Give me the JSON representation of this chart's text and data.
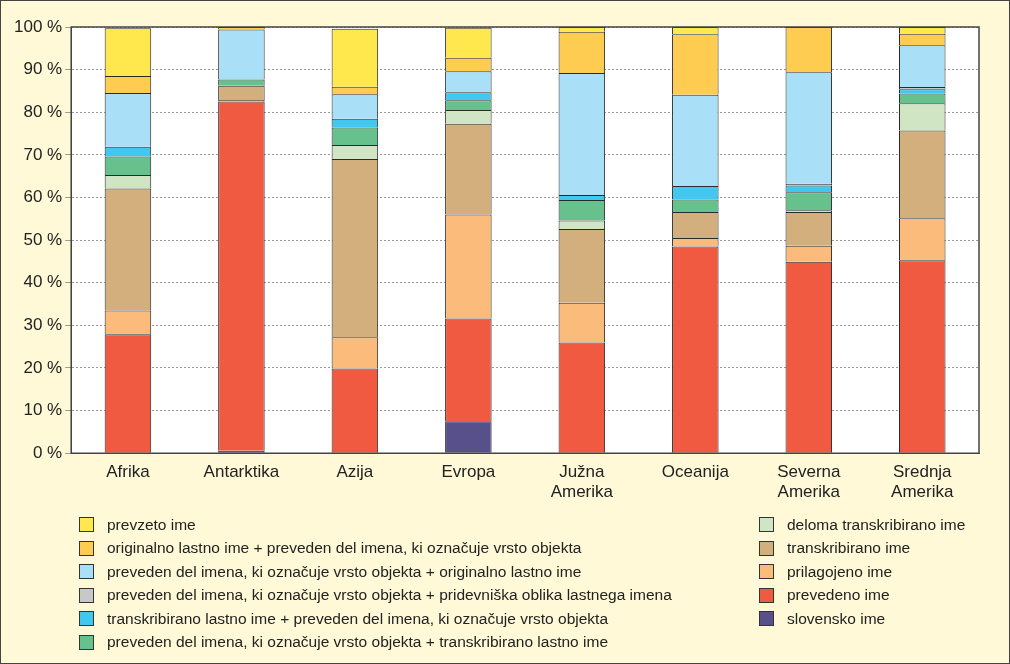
{
  "chart_data": {
    "type": "bar",
    "stacked": true,
    "categories": [
      "Afrika",
      "Antarktika",
      "Azija",
      "Evropa",
      "Južna Amerika",
      "Oceanija",
      "Severna Amerika",
      "Srednja Amerika"
    ],
    "ylim": [
      0,
      100
    ],
    "yticks": [
      {
        "value": 0,
        "label": "0 %"
      },
      {
        "value": 10,
        "label": "10 %"
      },
      {
        "value": 20,
        "label": "20 %"
      },
      {
        "value": 30,
        "label": "30 %"
      },
      {
        "value": 40,
        "label": "40 %"
      },
      {
        "value": 50,
        "label": "50 %"
      },
      {
        "value": 60,
        "label": "60 %"
      },
      {
        "value": 70,
        "label": "70 %"
      },
      {
        "value": 80,
        "label": "80 %"
      },
      {
        "value": 90,
        "label": "90 %"
      },
      {
        "value": 100,
        "label": "100 %"
      }
    ],
    "grid": "y",
    "legend": "bottom",
    "series": [
      {
        "name": "slovensko ime",
        "color": "#57508a",
        "values": [
          0,
          0.6,
          null,
          7.5,
          0,
          0,
          0,
          0
        ]
      },
      {
        "name": "prevedeno ime",
        "color": "#f05a40",
        "values": [
          27.9,
          81.9,
          19.9,
          24.1,
          26.0,
          48.5,
          44.9,
          45.3
        ]
      },
      {
        "name": "prilagojeno ime",
        "color": "#fabb7b",
        "values": [
          5.6,
          0.4,
          7.3,
          24.4,
          9.3,
          2.0,
          3.8,
          9.8
        ]
      },
      {
        "name": "transkribirano ime",
        "color": "#d4af7e",
        "values": [
          28.6,
          3.3,
          41.8,
          21.3,
          17.3,
          6.1,
          7.9,
          20.6
        ]
      },
      {
        "name": "deloma transkribirano ime",
        "color": "#cfe5c4",
        "values": [
          3.2,
          0,
          3.3,
          3.2,
          2.0,
          0,
          0.4,
          6.4
        ]
      },
      {
        "name": "preveden del imena, ki označuje vrsto objekta + transkribirano lastno ime",
        "color": "#66c18c",
        "values": [
          4.3,
          1.5,
          4.1,
          2.3,
          4.8,
          2.9,
          4.2,
          2.3
        ]
      },
      {
        "name": "transkribirano lastno ime + preveden del imena, ki označuje vrsto objekta",
        "color": "#40c8f0",
        "values": [
          2.3,
          0,
          2.1,
          1.9,
          1.2,
          3.2,
          1.6,
          1.0
        ]
      },
      {
        "name": "preveden del imena, ki označuje vrsto objekta + pridevniška oblika lastnega imena",
        "color": "#c8c8c8",
        "values": [
          null,
          0,
          null,
          null,
          0,
          0,
          0.4,
          0.5
        ]
      },
      {
        "name": "preveden del imena, ki označuje vrsto objekta + originalno lastno ime",
        "color": "#aadff8",
        "values": [
          12.6,
          11.7,
          5.7,
          4.9,
          28.6,
          21.4,
          26.2,
          9.8
        ]
      },
      {
        "name": "originalno lastno ime + preveden del imena, ki označuje vrsto objekta",
        "color": "#ffcc52",
        "values": [
          4.0,
          0.6,
          1.8,
          3.2,
          9.7,
          14.2,
          10.6,
          2.7
        ]
      },
      {
        "name": "prevzeto ime",
        "color": "#ffe84d",
        "values": [
          11.2,
          0,
          13.6,
          7.0,
          1.1,
          1.7,
          0,
          1.6
        ]
      }
    ]
  }
}
